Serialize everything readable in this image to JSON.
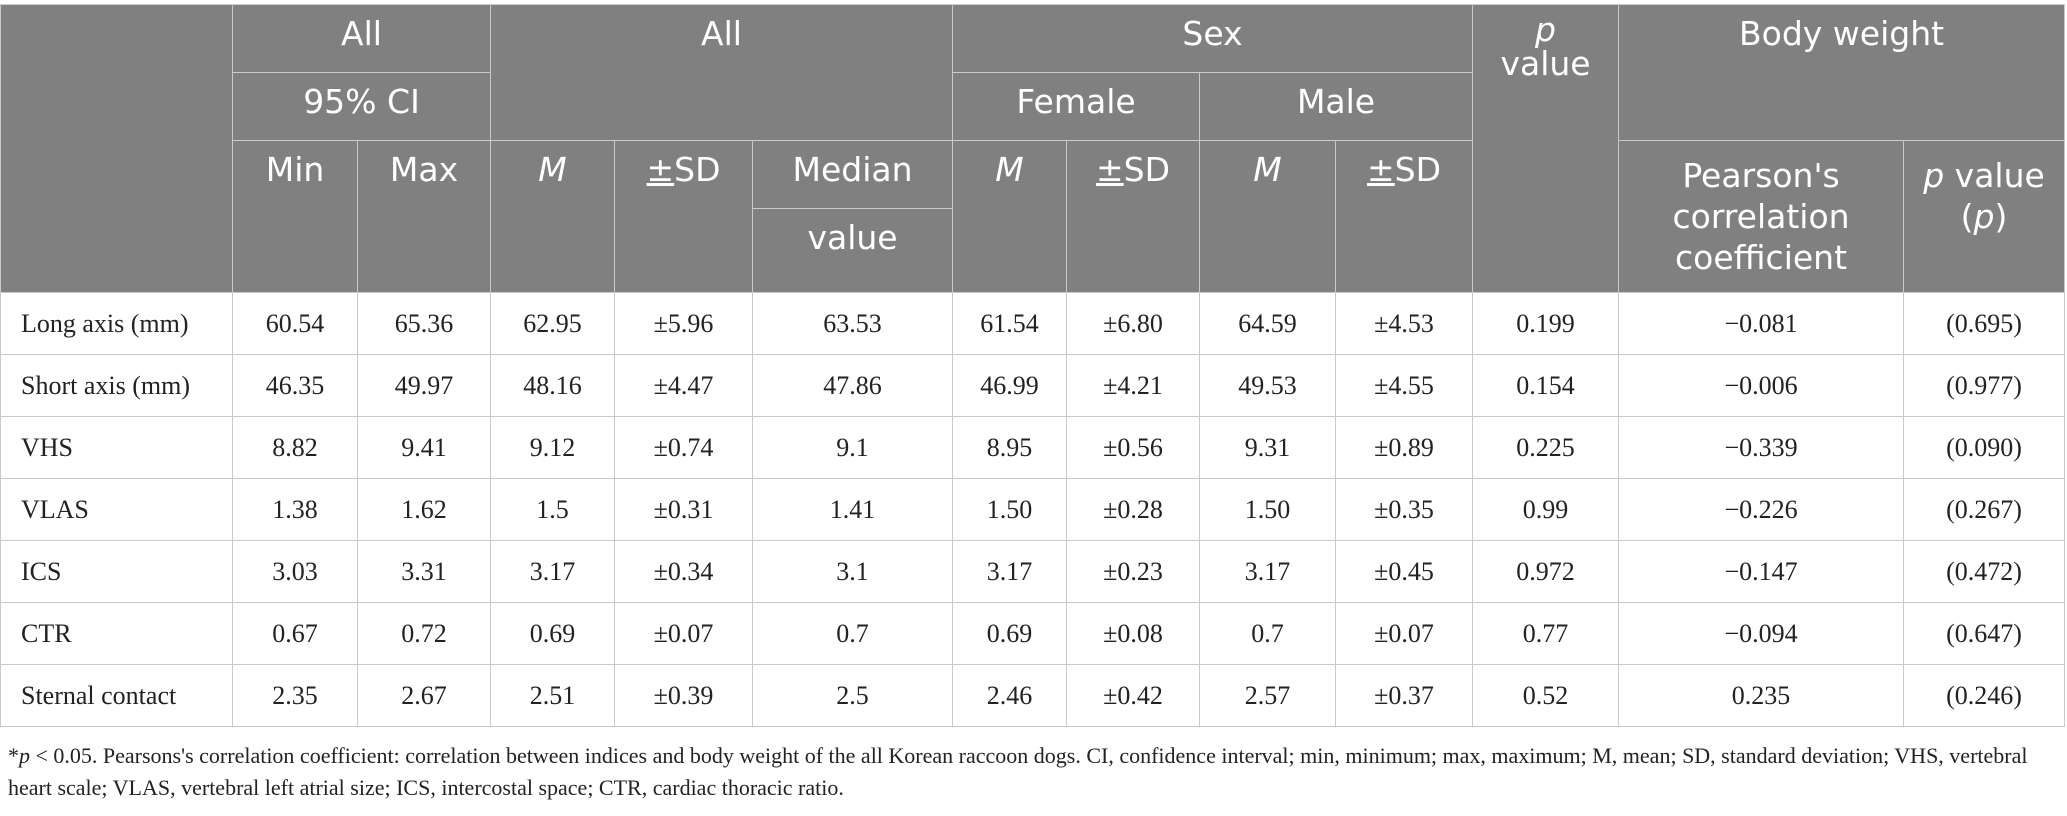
{
  "header": {
    "all_1": "All",
    "ci_95": "95% CI",
    "min": "Min",
    "max": "Max",
    "all_2": "All",
    "m": "M",
    "sd_pm": "±",
    "sd": "SD",
    "median_1": "Median",
    "median_2": "value",
    "sex": "Sex",
    "female": "Female",
    "male": "Male",
    "p_italic": "p",
    "p_value_word": "value",
    "body_weight": "Body weight",
    "pearson": "Pearson's correlation coefficient",
    "pv_p1": "p",
    "pv_value": " value",
    "pv_open": "(",
    "pv_p2": "p",
    "pv_close": ")"
  },
  "rows": [
    {
      "label": "Long axis (mm)",
      "cells": [
        "60.54",
        "65.36",
        "62.95",
        "±5.96",
        "63.53",
        "61.54",
        "±6.80",
        "64.59",
        "±4.53",
        "0.199",
        "−0.081",
        "(0.695)"
      ]
    },
    {
      "label": "Short axis (mm)",
      "cells": [
        "46.35",
        "49.97",
        "48.16",
        "±4.47",
        "47.86",
        "46.99",
        "±4.21",
        "49.53",
        "±4.55",
        "0.154",
        "−0.006",
        "(0.977)"
      ]
    },
    {
      "label": "VHS",
      "cells": [
        "8.82",
        "9.41",
        "9.12",
        "±0.74",
        "9.1",
        "8.95",
        "±0.56",
        "9.31",
        "±0.89",
        "0.225",
        "−0.339",
        "(0.090)"
      ]
    },
    {
      "label": "VLAS",
      "cells": [
        "1.38",
        "1.62",
        "1.5",
        "±0.31",
        "1.41",
        "1.50",
        "±0.28",
        "1.50",
        "±0.35",
        "0.99",
        "−0.226",
        "(0.267)"
      ]
    },
    {
      "label": "ICS",
      "cells": [
        "3.03",
        "3.31",
        "3.17",
        "±0.34",
        "3.1",
        "3.17",
        "±0.23",
        "3.17",
        "±0.45",
        "0.972",
        "−0.147",
        "(0.472)"
      ]
    },
    {
      "label": "CTR",
      "cells": [
        "0.67",
        "0.72",
        "0.69",
        "±0.07",
        "0.7",
        "0.69",
        "±0.08",
        "0.7",
        "±0.07",
        "0.77",
        "−0.094",
        "(0.647)"
      ]
    },
    {
      "label": "Sternal contact",
      "cells": [
        "2.35",
        "2.67",
        "2.51",
        "±0.39",
        "2.5",
        "2.46",
        "±0.42",
        "2.57",
        "±0.37",
        "0.52",
        "0.235",
        "(0.246)"
      ]
    }
  ],
  "footnote": {
    "star": "*",
    "p": "p",
    "text": " < 0.05. Pearsons's correlation coefficient: correlation between indices and body weight of the all Korean raccoon dogs. CI, confidence interval; min, minimum; max, maximum; M, mean; SD, standard deviation; VHS, vertebral heart scale; VLAS, vertebral left atrial size; ICS, intercostal space; CTR, cardiac thoracic ratio."
  }
}
